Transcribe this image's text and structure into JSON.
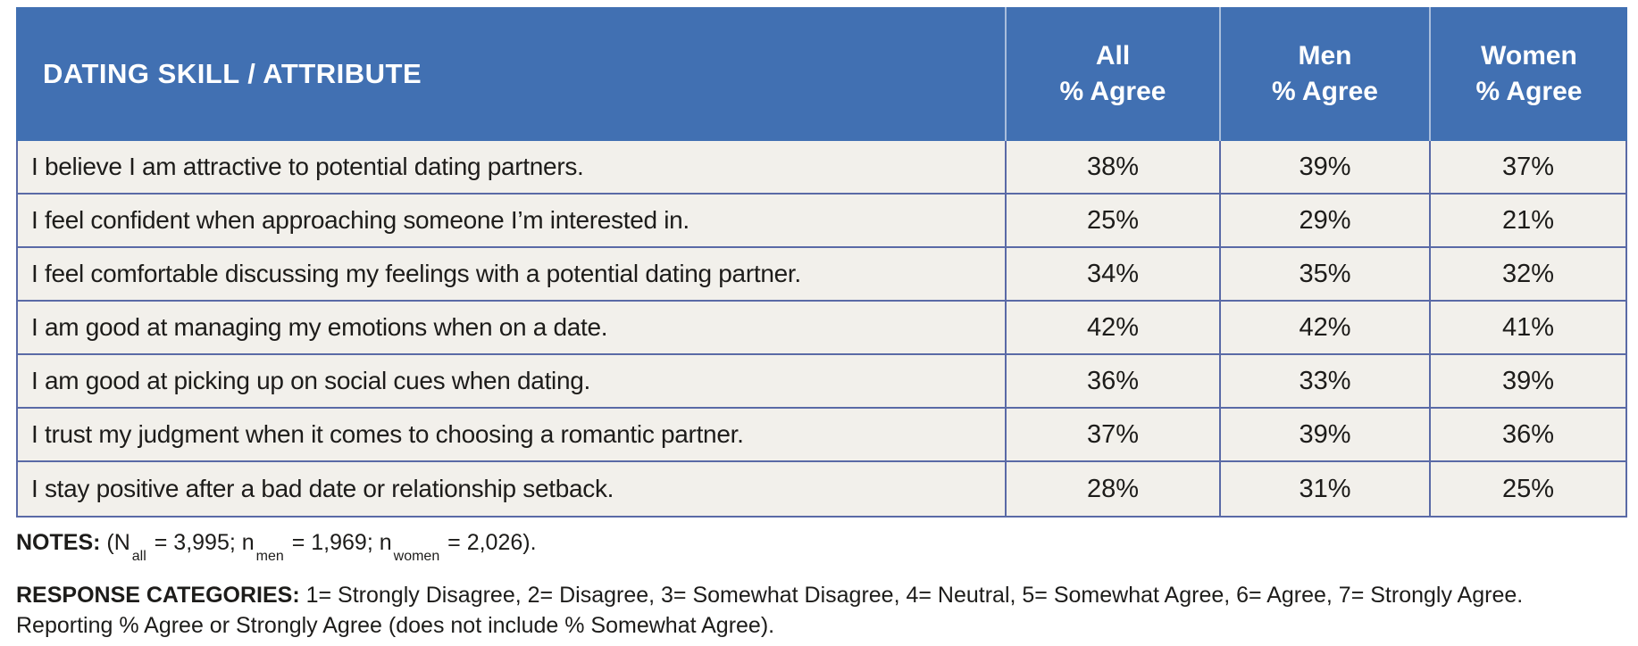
{
  "table": {
    "header": {
      "attribute_label": "DATING SKILL / ATTRIBUTE",
      "columns": [
        {
          "line1": "All",
          "line2": "% Agree"
        },
        {
          "line1": "Men",
          "line2": "% Agree"
        },
        {
          "line1": "Women",
          "line2": "% Agree"
        }
      ]
    },
    "rows": [
      {
        "attribute": "I believe I am attractive to potential dating partners.",
        "all": "38%",
        "men": "39%",
        "women": "37%"
      },
      {
        "attribute": "I feel confident when approaching someone I’m interested in.",
        "all": "25%",
        "men": "29%",
        "women": "21%"
      },
      {
        "attribute": "I feel comfortable discussing my feelings with a potential dating partner.",
        "all": "34%",
        "men": "35%",
        "women": "32%"
      },
      {
        "attribute": "I am good at managing my emotions when on a date.",
        "all": "42%",
        "men": "42%",
        "women": "41%"
      },
      {
        "attribute": "I am good at picking up on social cues when dating.",
        "all": "36%",
        "men": "33%",
        "women": "39%"
      },
      {
        "attribute": "I trust my judgment when it comes to choosing a romantic partner.",
        "all": "37%",
        "men": "39%",
        "women": "36%"
      },
      {
        "attribute": "I stay positive after a bad date or relationship setback.",
        "all": "28%",
        "men": "31%",
        "women": "25%"
      }
    ]
  },
  "notes": {
    "label": "NOTES:",
    "pre": " (N",
    "sub1": "all",
    "mid1": " = 3,995; n",
    "sub2": "men",
    "mid2": " = 1,969; n",
    "sub3": "women",
    "end": " = 2,026)."
  },
  "response_categories": {
    "label": "RESPONSE CATEGORIES:",
    "line1": " 1= Strongly Disagree, 2= Disagree, 3= Somewhat Disagree, 4= Neutral, 5= Somewhat Agree, 6= Agree, 7= Strongly Agree.",
    "line2": "Reporting % Agree or Strongly Agree (does not include % Somewhat Agree)."
  },
  "colors": {
    "header_blue": "#4170b2",
    "row_background": "#f2f0eb",
    "border_slate_blue": "#5a6aa6",
    "header_text": "#ffffff",
    "body_text": "#1d1c1a"
  },
  "chart_data": {
    "type": "table",
    "title": "DATING SKILL / ATTRIBUTE",
    "columns": [
      "DATING SKILL / ATTRIBUTE",
      "All % Agree",
      "Men % Agree",
      "Women % Agree"
    ],
    "rows": [
      [
        "I believe I am attractive to potential dating partners.",
        38,
        39,
        37
      ],
      [
        "I feel confident when approaching someone I’m interested in.",
        25,
        29,
        21
      ],
      [
        "I feel comfortable discussing my feelings with a potential dating partner.",
        34,
        35,
        32
      ],
      [
        "I am good at managing my emotions when on a date.",
        42,
        42,
        41
      ],
      [
        "I am good at picking up on social cues when dating.",
        36,
        33,
        39
      ],
      [
        "I trust my judgment when it comes to choosing a romantic partner.",
        37,
        39,
        36
      ],
      [
        "I stay positive after a bad date or relationship setback.",
        28,
        31,
        25
      ]
    ],
    "units": "percent agree",
    "notes": "(N_all = 3,995; n_men = 1,969; n_women = 2,026).",
    "response_categories": "1= Strongly Disagree, 2= Disagree, 3= Somewhat Disagree, 4= Neutral, 5= Somewhat Agree, 6= Agree, 7= Strongly Agree. Reporting % Agree or Strongly Agree (does not include % Somewhat Agree)."
  }
}
